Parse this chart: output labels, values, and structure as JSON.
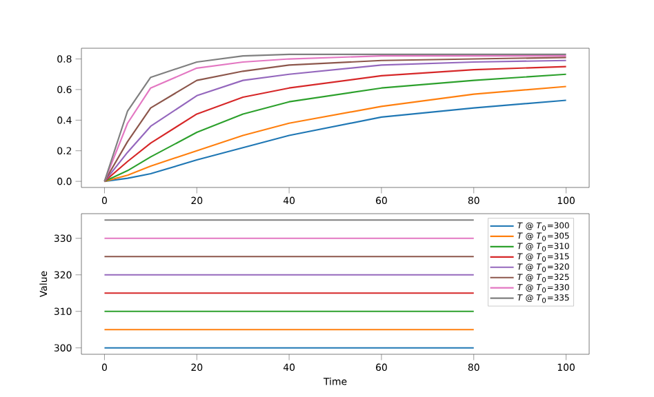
{
  "chart_data": [
    {
      "type": "line",
      "x": [
        0,
        5,
        10,
        20,
        30,
        40,
        60,
        80,
        100
      ],
      "xlim": [
        -5,
        105
      ],
      "ylim": [
        -0.04,
        0.87
      ],
      "xticks": [
        0,
        20,
        40,
        60,
        80,
        100
      ],
      "yticks": [
        {
          "value": 0,
          "label": "0.0"
        },
        0.2,
        0.4,
        0.6,
        0.8
      ],
      "series": [
        {
          "color": "#1f77b4",
          "values": [
            0,
            0.02,
            0.05,
            0.14,
            0.22,
            0.3,
            0.42,
            0.48,
            0.53
          ]
        },
        {
          "color": "#ff7f0e",
          "values": [
            0,
            0.04,
            0.1,
            0.2,
            0.3,
            0.38,
            0.49,
            0.57,
            0.62
          ]
        },
        {
          "color": "#2ca02c",
          "values": [
            0,
            0.07,
            0.16,
            0.32,
            0.44,
            0.52,
            0.61,
            0.66,
            0.7
          ]
        },
        {
          "color": "#d62728",
          "values": [
            0,
            0.13,
            0.25,
            0.44,
            0.55,
            0.61,
            0.69,
            0.73,
            0.75
          ]
        },
        {
          "color": "#9467bd",
          "values": [
            0,
            0.19,
            0.36,
            0.56,
            0.66,
            0.7,
            0.76,
            0.78,
            0.79
          ]
        },
        {
          "color": "#8c564b",
          "values": [
            0,
            0.26,
            0.48,
            0.66,
            0.72,
            0.76,
            0.79,
            0.8,
            0.81
          ]
        },
        {
          "color": "#e377c2",
          "values": [
            0,
            0.38,
            0.61,
            0.74,
            0.78,
            0.8,
            0.82,
            0.82,
            0.82
          ]
        },
        {
          "color": "#7f7f7f",
          "values": [
            0,
            0.46,
            0.68,
            0.78,
            0.82,
            0.83,
            0.83,
            0.83,
            0.83
          ]
        }
      ]
    },
    {
      "type": "line",
      "x": [
        0,
        20,
        40,
        60,
        80
      ],
      "xlim": [
        -5,
        105
      ],
      "ylim": [
        298.25,
        336.75
      ],
      "xticks": [
        0,
        20,
        40,
        60,
        80,
        100
      ],
      "yticks": [
        300,
        310,
        320,
        330
      ],
      "xlabel": "Time",
      "ylabel": "Value",
      "legend": "top right",
      "series": [
        {
          "name": "*T* @ *T*$_{0}$=300",
          "color": "#1f77b4",
          "values": [
            300,
            300,
            300,
            300,
            300
          ]
        },
        {
          "name": "*T* @ *T*$_{0}$=305",
          "color": "#ff7f0e",
          "values": [
            305,
            305,
            305,
            305,
            305
          ]
        },
        {
          "name": "*T* @ *T*$_{0}$=310",
          "color": "#2ca02c",
          "values": [
            310,
            310,
            310,
            310,
            310
          ]
        },
        {
          "name": "*T* @ *T*$_{0}$=315",
          "color": "#d62728",
          "values": [
            315,
            315,
            315,
            315,
            315
          ]
        },
        {
          "name": "*T* @ *T*$_{0}$=320",
          "color": "#9467bd",
          "values": [
            320,
            320,
            320,
            320,
            320
          ]
        },
        {
          "name": "*T* @ *T*$_{0}$=325",
          "color": "#8c564b",
          "values": [
            325,
            325,
            325,
            325,
            325
          ]
        },
        {
          "name": "*T* @ *T*$_{0}$=330",
          "color": "#e377c2",
          "values": [
            330,
            330,
            330,
            330,
            330
          ]
        },
        {
          "name": "*T* @ *T*$_{0}$=335",
          "color": "#7f7f7f",
          "values": [
            335,
            335,
            335,
            335,
            335
          ]
        }
      ]
    }
  ]
}
